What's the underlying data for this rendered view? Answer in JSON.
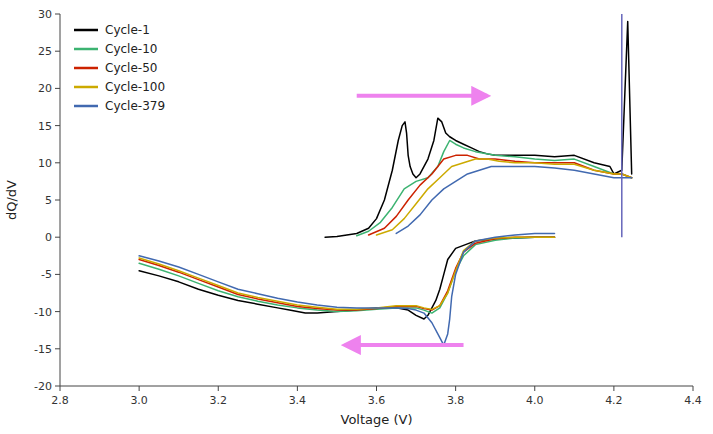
{
  "chart_data": {
    "type": "line",
    "xlabel": "Voltage (V)",
    "ylabel": "dQ/dV",
    "xlim": [
      2.8,
      4.4
    ],
    "ylim": [
      -20,
      30
    ],
    "xticks": [
      2.8,
      {
        "value": 3.0,
        "label": "3.0"
      },
      3.2,
      3.4,
      3.6,
      3.8,
      {
        "value": 4.0,
        "label": "4.0"
      },
      4.2,
      4.4
    ],
    "yticks": [
      -20,
      -15,
      -10,
      -5,
      0,
      5,
      10,
      15,
      20,
      25,
      30
    ],
    "grid": false,
    "legend": "upper left",
    "series": [
      {
        "name": "Cycle-1",
        "color": "#000000",
        "segments": [
          {
            "x": [
              3.47,
              3.5,
              3.55,
              3.58,
              3.6,
              3.62,
              3.64,
              3.655,
              3.665,
              3.672,
              3.676,
              3.68,
              3.685,
              3.692,
              3.7,
              3.71,
              3.73,
              3.745,
              3.755,
              3.765,
              3.775,
              3.785,
              3.8,
              3.82,
              3.84,
              3.86,
              3.88,
              3.9,
              3.95,
              4.0,
              4.05,
              4.1,
              4.15,
              4.19,
              4.2,
              4.22,
              4.235,
              4.245
            ],
            "values": [
              0.0,
              0.1,
              0.5,
              1.2,
              2.5,
              5.0,
              9.0,
              13.0,
              15.0,
              15.5,
              14.0,
              11.0,
              9.5,
              8.5,
              8.0,
              8.5,
              10.5,
              13.0,
              16.0,
              15.5,
              14.0,
              13.5,
              13.0,
              12.5,
              12.0,
              11.5,
              11.2,
              11.0,
              11.0,
              11.0,
              10.8,
              11.0,
              10.0,
              9.5,
              8.5,
              9.0,
              29.0,
              8.5
            ]
          },
          {
            "x": [
              3.0,
              3.05,
              3.1,
              3.15,
              3.2,
              3.25,
              3.3,
              3.35,
              3.38,
              3.4,
              3.42,
              3.45,
              3.5,
              3.55,
              3.6,
              3.65,
              3.68,
              3.7,
              3.72,
              3.73,
              3.74,
              3.75,
              3.76,
              3.77,
              3.78,
              3.8,
              3.85,
              3.9,
              3.95,
              4.0,
              4.05
            ],
            "values": [
              -4.5,
              -5.2,
              -6.0,
              -7.0,
              -7.8,
              -8.5,
              -9.0,
              -9.5,
              -9.8,
              -10.0,
              -10.2,
              -10.2,
              -10.0,
              -9.8,
              -9.5,
              -9.5,
              -9.8,
              -10.5,
              -11.0,
              -10.5,
              -9.5,
              -8.5,
              -7.0,
              -5.0,
              -3.0,
              -1.5,
              -0.5,
              -0.2,
              -0.1,
              0.0,
              0.0
            ]
          }
        ]
      },
      {
        "name": "Cycle-10",
        "color": "#3cb371",
        "segments": [
          {
            "x": [
              3.55,
              3.58,
              3.61,
              3.64,
              3.67,
              3.7,
              3.73,
              3.755,
              3.77,
              3.785,
              3.8,
              3.82,
              3.85,
              3.9,
              3.95,
              4.0,
              4.05,
              4.1,
              4.15,
              4.2,
              4.22,
              4.245
            ],
            "values": [
              0.2,
              0.8,
              2.0,
              4.0,
              6.5,
              7.5,
              8.0,
              9.5,
              11.5,
              13.0,
              12.5,
              12.0,
              11.5,
              11.0,
              10.8,
              10.5,
              10.3,
              10.5,
              9.5,
              8.5,
              8.5,
              8.0
            ]
          },
          {
            "x": [
              3.0,
              3.05,
              3.1,
              3.15,
              3.2,
              3.25,
              3.3,
              3.35,
              3.4,
              3.45,
              3.5,
              3.55,
              3.6,
              3.65,
              3.7,
              3.72,
              3.74,
              3.76,
              3.78,
              3.8,
              3.82,
              3.85,
              3.9,
              3.95,
              4.0,
              4.05
            ],
            "values": [
              -3.5,
              -4.3,
              -5.2,
              -6.2,
              -7.2,
              -8.0,
              -8.6,
              -9.1,
              -9.5,
              -9.8,
              -10.0,
              -9.9,
              -9.7,
              -9.5,
              -9.5,
              -9.8,
              -10.2,
              -9.5,
              -7.5,
              -4.5,
              -2.5,
              -1.0,
              -0.4,
              -0.1,
              0.0,
              0.0
            ]
          }
        ]
      },
      {
        "name": "Cycle-50",
        "color": "#cc2200",
        "segments": [
          {
            "x": [
              3.58,
              3.62,
              3.65,
              3.68,
              3.71,
              3.74,
              3.77,
              3.8,
              3.83,
              3.86,
              3.9,
              3.95,
              4.0,
              4.05,
              4.1,
              4.15,
              4.2,
              4.22,
              4.245
            ],
            "values": [
              0.3,
              1.2,
              2.8,
              5.0,
              7.0,
              8.5,
              10.5,
              11.0,
              11.0,
              10.5,
              10.5,
              10.2,
              10.0,
              10.0,
              10.0,
              9.0,
              8.5,
              8.5,
              8.0
            ]
          },
          {
            "x": [
              3.0,
              3.05,
              3.1,
              3.15,
              3.2,
              3.25,
              3.3,
              3.35,
              3.4,
              3.45,
              3.5,
              3.55,
              3.6,
              3.65,
              3.7,
              3.72,
              3.74,
              3.76,
              3.78,
              3.8,
              3.82,
              3.85,
              3.9,
              3.95,
              4.0,
              4.05
            ],
            "values": [
              -3.0,
              -3.8,
              -4.7,
              -5.7,
              -6.7,
              -7.7,
              -8.3,
              -8.8,
              -9.3,
              -9.6,
              -9.8,
              -9.8,
              -9.6,
              -9.3,
              -9.3,
              -9.6,
              -9.8,
              -9.2,
              -7.2,
              -4.2,
              -2.0,
              -0.8,
              -0.2,
              0.0,
              0.0,
              0.0
            ]
          }
        ]
      },
      {
        "name": "Cycle-100",
        "color": "#ccaa00",
        "segments": [
          {
            "x": [
              3.6,
              3.64,
              3.67,
              3.7,
              3.73,
              3.76,
              3.79,
              3.82,
              3.85,
              3.88,
              3.91,
              3.95,
              4.0,
              4.05,
              4.1,
              4.15,
              4.2,
              4.22,
              4.245
            ],
            "values": [
              0.3,
              1.0,
              2.5,
              4.5,
              6.5,
              8.0,
              9.5,
              10.0,
              10.5,
              10.5,
              10.2,
              10.0,
              10.0,
              9.8,
              9.8,
              9.0,
              8.5,
              8.5,
              8.0
            ]
          },
          {
            "x": [
              3.0,
              3.05,
              3.1,
              3.15,
              3.2,
              3.25,
              3.3,
              3.35,
              3.4,
              3.45,
              3.5,
              3.55,
              3.6,
              3.65,
              3.7,
              3.72,
              3.74,
              3.76,
              3.78,
              3.8,
              3.82,
              3.85,
              3.9,
              3.95,
              4.0,
              4.05
            ],
            "values": [
              -2.8,
              -3.6,
              -4.5,
              -5.5,
              -6.5,
              -7.5,
              -8.1,
              -8.6,
              -9.1,
              -9.4,
              -9.7,
              -9.7,
              -9.5,
              -9.2,
              -9.2,
              -9.5,
              -9.7,
              -9.2,
              -7.5,
              -4.5,
              -1.8,
              -0.5,
              -0.1,
              0.0,
              0.0,
              0.0
            ]
          }
        ]
      },
      {
        "name": "Cycle-379",
        "color": "#4169b0",
        "segments": [
          {
            "x": [
              3.65,
              3.68,
              3.71,
              3.74,
              3.77,
              3.8,
              3.83,
              3.86,
              3.89,
              3.92,
              3.96,
              4.0,
              4.05,
              4.1,
              4.15,
              4.2,
              4.22,
              4.245
            ],
            "values": [
              0.5,
              1.5,
              3.0,
              5.0,
              6.5,
              7.5,
              8.5,
              9.0,
              9.5,
              9.5,
              9.5,
              9.5,
              9.3,
              9.0,
              8.5,
              8.0,
              8.0,
              8.0
            ]
          },
          {
            "x": [
              3.0,
              3.05,
              3.1,
              3.15,
              3.2,
              3.25,
              3.3,
              3.35,
              3.4,
              3.45,
              3.5,
              3.55,
              3.6,
              3.65,
              3.68,
              3.7,
              3.72,
              3.74,
              3.76,
              3.77,
              3.78,
              3.785,
              3.79,
              3.8,
              3.82,
              3.85,
              3.9,
              3.95,
              4.0,
              4.05
            ],
            "values": [
              -2.5,
              -3.2,
              -4.0,
              -5.0,
              -6.0,
              -7.0,
              -7.6,
              -8.2,
              -8.7,
              -9.1,
              -9.4,
              -9.5,
              -9.5,
              -9.5,
              -9.6,
              -9.8,
              -10.2,
              -11.5,
              -13.5,
              -14.5,
              -13.0,
              -11.0,
              -8.0,
              -5.0,
              -2.0,
              -0.5,
              0.0,
              0.3,
              0.5,
              0.5
            ]
          }
        ]
      }
    ],
    "annotations": [
      {
        "type": "arrow",
        "x": [
          3.55,
          3.88
        ],
        "y": [
          19.0,
          19.0
        ],
        "color": "#ee82ee"
      },
      {
        "type": "arrow",
        "x": [
          3.82,
          3.52
        ],
        "y": [
          -14.5,
          -14.5
        ],
        "color": "#ee82ee"
      },
      {
        "type": "line",
        "x": [
          4.22,
          4.22
        ],
        "y": [
          0.0,
          30.0
        ],
        "color": "#6666bb"
      }
    ]
  }
}
